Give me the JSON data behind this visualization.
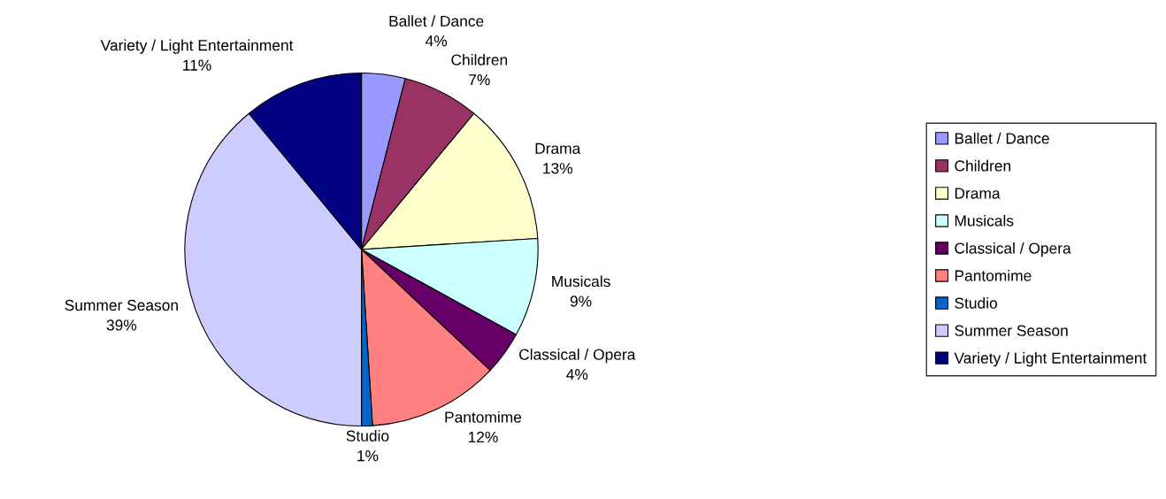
{
  "chart_data": {
    "type": "pie",
    "categories": [
      "Ballet / Dance",
      "Children",
      "Drama",
      "Musicals",
      "Classical / Opera",
      "Pantomime",
      "Studio",
      "Summer Season",
      "Variety / Light Entertainment"
    ],
    "values": [
      4,
      7,
      13,
      9,
      4,
      12,
      1,
      39,
      11
    ],
    "value_labels": [
      "4%",
      "7%",
      "13%",
      "9%",
      "4%",
      "12%",
      "1%",
      "39%",
      "11%"
    ],
    "colors": [
      "#9999ff",
      "#993366",
      "#ffffcc",
      "#ccffff",
      "#660066",
      "#ff8080",
      "#0066cc",
      "#ccccff",
      "#000080"
    ],
    "legend": "right"
  }
}
